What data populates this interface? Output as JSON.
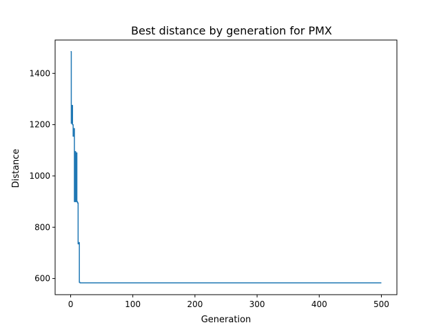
{
  "chart_data": {
    "type": "line",
    "title": "Best distance by generation for PMX",
    "xlabel": "Generation",
    "ylabel": "Distance",
    "xlim": [
      -25,
      525
    ],
    "ylim": [
      537,
      1530
    ],
    "xticks": [
      0,
      100,
      200,
      300,
      400,
      500
    ],
    "yticks": [
      600,
      800,
      1000,
      1200,
      1400
    ],
    "grid": false,
    "legend": "none",
    "color": "#1f77b4",
    "series": [
      {
        "x": [
          0,
          1,
          1,
          2,
          2,
          3,
          3,
          4,
          4,
          5,
          5,
          6,
          6,
          7,
          7,
          8,
          8,
          9,
          9,
          10,
          10,
          11,
          11,
          12,
          12,
          13,
          13,
          14,
          14,
          15,
          15,
          500
        ],
        "y": [
          1485,
          1485,
          1205,
          1205,
          1275,
          1275,
          1200,
          1200,
          1155,
          1155,
          1185,
          1185,
          900,
          900,
          1095,
          1095,
          900,
          900,
          1090,
          1090,
          900,
          900,
          895,
          895,
          735,
          735,
          740,
          740,
          585,
          585,
          583,
          583
        ]
      }
    ]
  }
}
